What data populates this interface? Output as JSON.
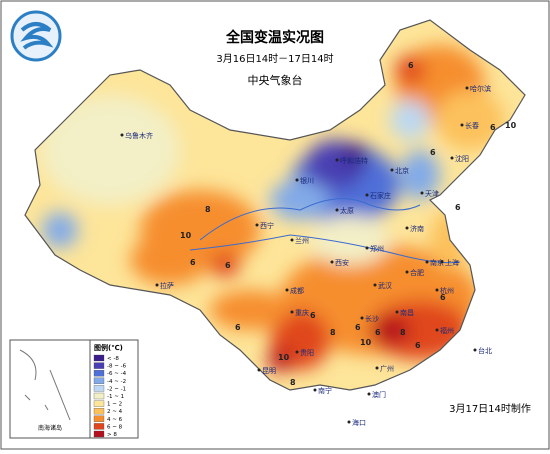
{
  "header": {
    "title": "全国变温实况图",
    "subtitle": "3月16日14时－17日14时",
    "agency": "中央气象台"
  },
  "legend": {
    "title": "图例(℃)",
    "items": [
      {
        "label": "< -8",
        "color": "#3a1c8c"
      },
      {
        "label": "-8 ~ -6",
        "color": "#4a3fb3"
      },
      {
        "label": "-6 ~ -4",
        "color": "#4f6fd8"
      },
      {
        "label": "-4 ~ -2",
        "color": "#82aae8"
      },
      {
        "label": "-2 ~ -1",
        "color": "#bcd8f2"
      },
      {
        "label": "-1 ~ 1",
        "color": "#f3efc6"
      },
      {
        "label": "1 ~ 2",
        "color": "#fde59a"
      },
      {
        "label": "2 ~ 4",
        "color": "#fcc15b"
      },
      {
        "label": "4 ~ 6",
        "color": "#f68e2e"
      },
      {
        "label": "6 ~ 8",
        "color": "#e0461e"
      },
      {
        "label": "> 8",
        "color": "#b5101e"
      }
    ]
  },
  "cities": [
    "乌鲁木齐",
    "呼和浩特",
    "哈尔滨",
    "长春",
    "沈阳",
    "北京",
    "天津",
    "石家庄",
    "济南",
    "太原",
    "银川",
    "兰州",
    "西宁",
    "西安",
    "郑州",
    "拉萨",
    "成都",
    "重庆",
    "武汉",
    "合肥",
    "南京",
    "上海",
    "杭州",
    "长沙",
    "南昌",
    "福州",
    "台北",
    "贵阳",
    "昆明",
    "南宁",
    "广州",
    "澳门",
    "海口"
  ],
  "isotherm_labels": [
    "10",
    "6",
    "6",
    "6",
    "8",
    "10",
    "6",
    "6",
    "8",
    "6",
    "6",
    "6",
    "10",
    "8",
    "6",
    "6",
    "10",
    "8",
    "6",
    "6"
  ],
  "inset": {
    "title": "南海诸岛"
  },
  "footer": "3月17日14时制作"
}
